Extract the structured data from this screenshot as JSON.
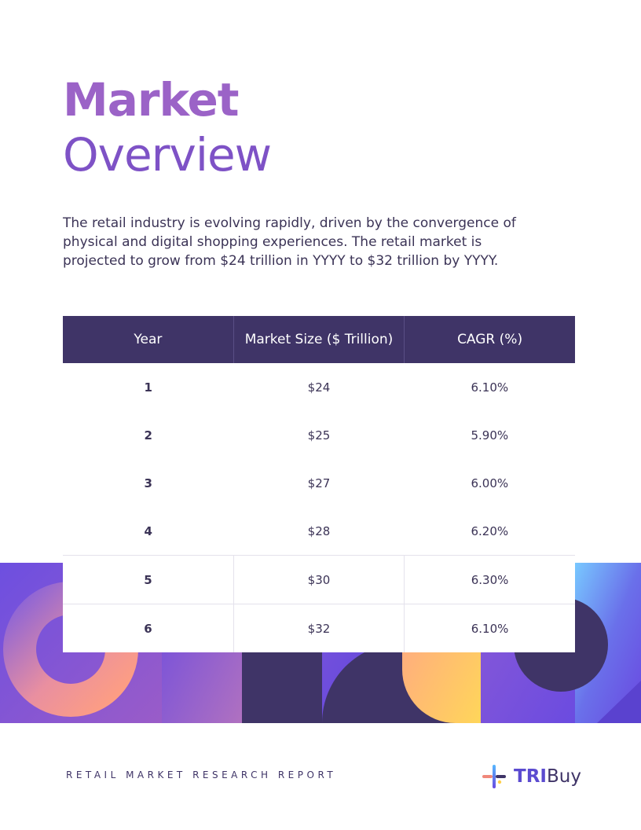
{
  "title": {
    "line1": "Market",
    "line2": "Overview"
  },
  "intro": "The retail industry is evolving rapidly, driven by the convergence of physical and digital shopping experiences. The retail market is projected to grow from $24 trillion in YYYY to $32 trillion by YYYY.",
  "table": {
    "headers": [
      "Year",
      "Market Size ($ Trillion)",
      "CAGR (%)"
    ],
    "rows": [
      [
        "1",
        "$24",
        "6.10%"
      ],
      [
        "2",
        "$25",
        "5.90%"
      ],
      [
        "3",
        "$27",
        "6.00%"
      ],
      [
        "4",
        "$28",
        "6.20%"
      ],
      [
        "5",
        "$30",
        "6.30%"
      ],
      [
        "6",
        "$32",
        "6.10%"
      ]
    ]
  },
  "footer": {
    "label": "RETAIL MARKET RESEARCH REPORT",
    "brand_bold": "TRI",
    "brand_regular": "Buy"
  },
  "colors": {
    "title_bold": "#9b63c7",
    "title_light": "#7e52c6",
    "table_header": "#3f3467",
    "text": "#3b3356"
  }
}
